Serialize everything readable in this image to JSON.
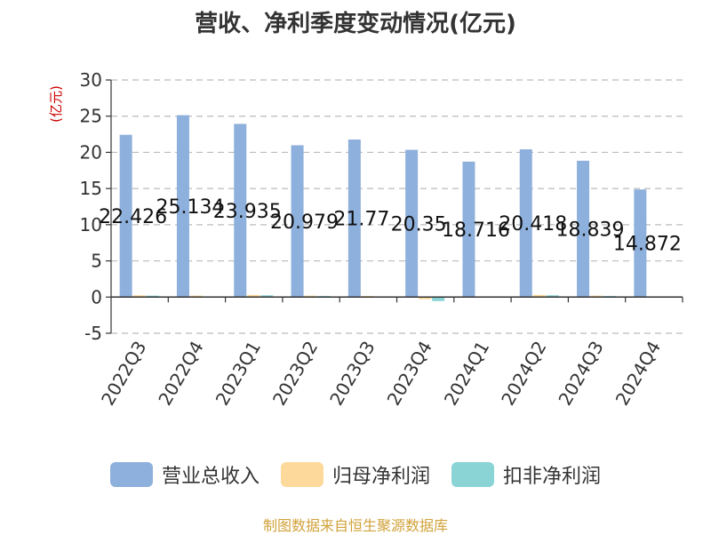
{
  "chart_data": {
    "type": "bar",
    "title": "营收、净利季度变动情况(亿元)",
    "ylabel": "(亿元)",
    "ylim": [
      -5,
      30
    ],
    "yticks": [
      30,
      25,
      20,
      15,
      10,
      5,
      0,
      -5
    ],
    "grid": true,
    "legend_position": "bottom",
    "categories": [
      "2022Q3",
      "2022Q4",
      "2023Q1",
      "2023Q2",
      "2023Q3",
      "2023Q4",
      "2024Q1",
      "2024Q2",
      "2024Q3",
      "2024Q4"
    ],
    "series": [
      {
        "name": "营业总收入",
        "color": "#8eb0dc",
        "values": [
          22.426,
          25.134,
          23.935,
          20.979,
          21.77,
          20.35,
          18.716,
          20.418,
          18.839,
          14.872
        ],
        "labels": [
          "22.426",
          "25.134",
          "23.935",
          "20.979",
          "21.77",
          "20.35",
          "18.716",
          "20.418",
          "18.839",
          "14.872"
        ]
      },
      {
        "name": "归母净利润",
        "color": "#fdd99b",
        "values": [
          0.25,
          0.2,
          0.3,
          0.2,
          0.15,
          -0.3,
          0.1,
          0.3,
          0.2,
          0.1
        ]
      },
      {
        "name": "扣非净利润",
        "color": "#8ad4d6",
        "values": [
          0.2,
          0.1,
          0.25,
          0.15,
          0.1,
          -0.55,
          0.05,
          0.25,
          0.15,
          0.05
        ]
      }
    ]
  },
  "source": "制图数据来自恒生聚源数据库"
}
